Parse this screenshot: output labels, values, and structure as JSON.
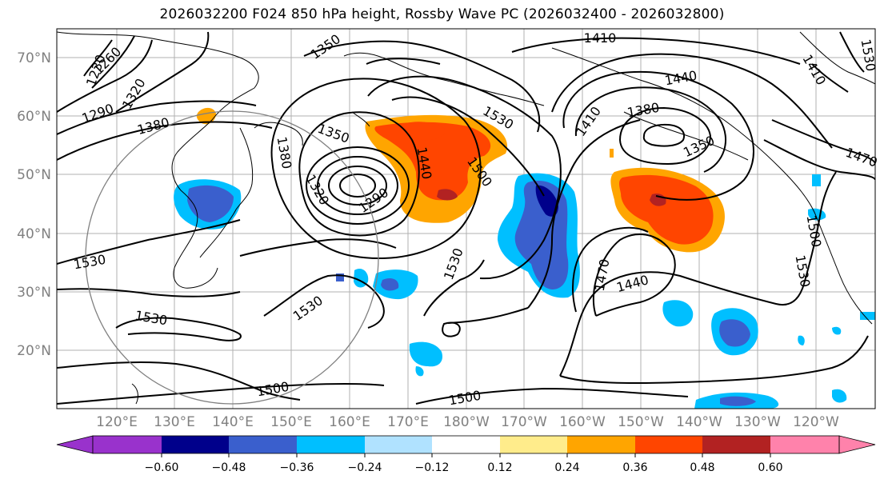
{
  "title": "2026032200 F024 850 hPa height, Rossby Wave PC (2026032400 - 2026032800)",
  "lat_labels": [
    "70°N",
    "60°N",
    "50°N",
    "40°N",
    "30°N",
    "20°N"
  ],
  "lon_labels": [
    "120°E",
    "130°E",
    "140°E",
    "150°E",
    "160°E",
    "170°E",
    "180°W",
    "170°W",
    "160°W",
    "150°W",
    "140°W",
    "130°W",
    "120°W"
  ],
  "contour_labels": [
    "1230",
    "1260",
    "1290",
    "1320",
    "1380",
    "1350",
    "1380",
    "1350",
    "1410",
    "1440",
    "1530",
    "1380",
    "1410",
    "1350",
    "1470",
    "1410",
    "1320",
    "1290",
    "1440",
    "1500",
    "1530",
    "1530",
    "1530",
    "1470",
    "1440",
    "1500",
    "1530",
    "1530",
    "1530",
    "1500",
    "1500"
  ],
  "colorbar": {
    "ticks": [
      "−0.60",
      "−0.48",
      "−0.36",
      "−0.24",
      "−0.12",
      "0.12",
      "0.24",
      "0.36",
      "0.48",
      "0.60"
    ],
    "colors": [
      "#9932cc",
      "#00008b",
      "#3a5fcd",
      "#00bfff",
      "#b0e2ff",
      "#ffffff",
      "#ffec8b",
      "#ffa500",
      "#ff4500",
      "#b22222",
      "#ff82ab"
    ]
  }
}
